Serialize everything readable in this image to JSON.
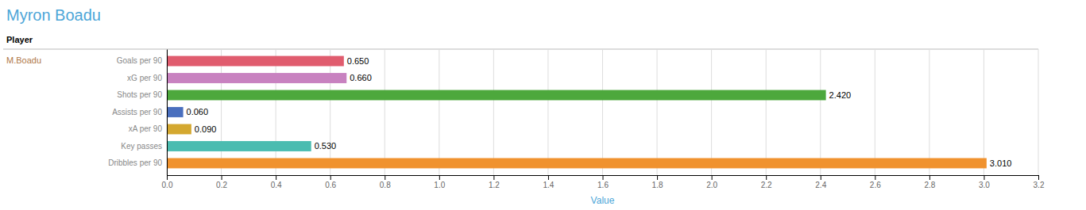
{
  "chart_data": {
    "type": "bar",
    "orientation": "horizontal",
    "title": "Myron Boadu",
    "xlabel": "Value",
    "annotations": [
      "Player",
      "M.Boadu"
    ],
    "categories": [
      "Goals per 90",
      "xG per 90",
      "Shots per 90",
      "Assists per 90",
      "xA per 90",
      "Key passes",
      "Dribbles per 90"
    ],
    "values": [
      0.65,
      0.66,
      2.42,
      0.06,
      0.09,
      0.53,
      3.01
    ],
    "value_labels": [
      "0.650",
      "0.660",
      "2.420",
      "0.060",
      "0.090",
      "0.530",
      "3.010"
    ],
    "colors": [
      "#e05c6e",
      "#c882c0",
      "#4da83c",
      "#4a6fbe",
      "#d4a830",
      "#4abcb0",
      "#f0922e"
    ],
    "xlim": [
      0,
      3.2
    ],
    "xticks": [
      {
        "value": 0.0,
        "label": "0.0"
      },
      0.2,
      0.4,
      0.6,
      0.8,
      {
        "value": 1.0,
        "label": "1.0"
      },
      1.2,
      1.4,
      1.6,
      1.8,
      {
        "value": 2.0,
        "label": "2.0"
      },
      2.2,
      2.4,
      2.6,
      2.8,
      {
        "value": 3.0,
        "label": "3.0"
      },
      3.2
    ],
    "grid": true,
    "data_labels": true
  }
}
